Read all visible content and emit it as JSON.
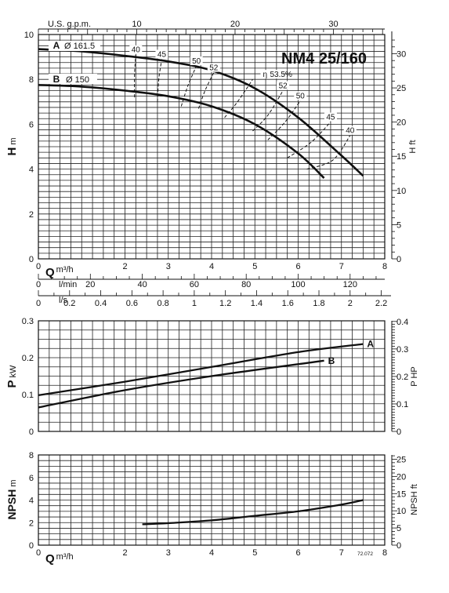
{
  "model": "NM4 25/160",
  "code": "72.072",
  "chart_data": [
    {
      "type": "line",
      "name": "head",
      "xlabel": "Q",
      "xunit": "m³/h",
      "ylabel": "H",
      "yunit": "m",
      "y2label": "H ft",
      "xlim": [
        0,
        8
      ],
      "ylim": [
        0,
        10
      ],
      "x_ticks": [
        0,
        1,
        2,
        3,
        4,
        5,
        6,
        7,
        8
      ],
      "y_ticks": [
        0,
        2,
        4,
        6,
        8,
        10
      ],
      "y2_ticks": [
        0,
        5,
        10,
        15,
        20,
        25,
        30
      ],
      "top_axis": {
        "label": "U.S. g.p.m.",
        "ticks": [
          10,
          20,
          30
        ]
      },
      "grid": true,
      "series": [
        {
          "name": "A",
          "label": "Ø 161.5",
          "x": [
            0,
            1,
            2,
            3,
            4,
            5,
            6,
            7,
            7.5
          ],
          "y": [
            9.35,
            9.25,
            9.05,
            8.8,
            8.4,
            7.6,
            6.3,
            4.6,
            3.7
          ]
        },
        {
          "name": "B",
          "label": "Ø 150",
          "x": [
            0,
            1,
            2,
            3,
            4,
            5,
            6,
            6.6
          ],
          "y": [
            7.75,
            7.68,
            7.5,
            7.25,
            6.8,
            6.0,
            4.7,
            3.6
          ]
        }
      ],
      "efficiency": {
        "prefix": "η",
        "lines": [
          {
            "label": "40",
            "x": [
              2.22,
              2.22,
              2.25
            ],
            "y": [
              7.2,
              8.2,
              9.1
            ]
          },
          {
            "label": "45",
            "x": [
              2.75,
              2.78,
              2.85
            ],
            "y": [
              7.0,
              8.0,
              8.9
            ]
          },
          {
            "label": "50",
            "x": [
              3.3,
              3.45,
              3.65
            ],
            "y": [
              6.8,
              7.7,
              8.6
            ]
          },
          {
            "label": "52",
            "x": [
              3.7,
              3.85,
              4.05
            ],
            "y": [
              6.7,
              7.5,
              8.3
            ]
          },
          {
            "label": "53.5%",
            "x": [
              4.3,
              4.6,
              4.95
            ],
            "y": [
              6.3,
              7.0,
              8.0
            ]
          },
          {
            "label": "52",
            "x": [
              4.95,
              5.3,
              5.65
            ],
            "y": [
              5.7,
              6.4,
              7.5
            ]
          },
          {
            "label": "50",
            "x": [
              5.3,
              5.7,
              6.05
            ],
            "y": [
              5.3,
              6.1,
              7.05
            ]
          },
          {
            "label": "45",
            "x": [
              5.75,
              6.3,
              6.75
            ],
            "y": [
              4.5,
              5.2,
              6.1
            ]
          },
          {
            "label": "40",
            "x": [
              6.2,
              6.8,
              7.2
            ],
            "y": [
              4.0,
              4.4,
              5.5
            ]
          }
        ]
      }
    },
    {
      "type": "axes",
      "name": "flow-scales",
      "scales": [
        {
          "unit": "l/min",
          "ticks": [
            20,
            40,
            60,
            80,
            100,
            120
          ]
        },
        {
          "unit": "l/s",
          "ticks": [
            0,
            0.2,
            0.4,
            0.6,
            0.8,
            1,
            1.2,
            1.4,
            1.6,
            1.8,
            2,
            2.2
          ]
        }
      ]
    },
    {
      "type": "line",
      "name": "power",
      "ylabel": "P",
      "yunit": "kW",
      "y2label": "P HP",
      "xlim": [
        0,
        8
      ],
      "ylim": [
        0,
        0.3
      ],
      "y_ticks": [
        0,
        0.1,
        0.2,
        0.3
      ],
      "y_tick_labels": [
        "0",
        "0.1",
        "0.2",
        "0.3"
      ],
      "y2_ticks": [
        0,
        0.1,
        0.2,
        0.3,
        0.4
      ],
      "y2_tick_labels": [
        "0",
        "0.1",
        "0.2",
        "0.3",
        "0.4"
      ],
      "grid": true,
      "series": [
        {
          "name": "A",
          "x": [
            0,
            2,
            4,
            6,
            7.5
          ],
          "y": [
            0.098,
            0.135,
            0.175,
            0.215,
            0.237
          ]
        },
        {
          "name": "B",
          "x": [
            0,
            2,
            4,
            6.6
          ],
          "y": [
            0.065,
            0.112,
            0.15,
            0.192
          ]
        }
      ]
    },
    {
      "type": "line",
      "name": "npsh",
      "xlabel": "Q",
      "xunit": "m³/h",
      "ylabel": "NPSH",
      "yunit": "m",
      "y2label": "NPSH ft",
      "xlim": [
        0,
        8
      ],
      "ylim": [
        0,
        8
      ],
      "x_ticks": [
        0,
        1,
        2,
        3,
        4,
        5,
        6,
        7,
        8
      ],
      "y_ticks": [
        0,
        2,
        4,
        6,
        8
      ],
      "y2_ticks": [
        0,
        5,
        10,
        15,
        20,
        25
      ],
      "grid": true,
      "series": [
        {
          "name": "NPSH",
          "x": [
            2.4,
            3,
            4,
            5,
            6,
            7,
            7.5
          ],
          "y": [
            1.85,
            1.95,
            2.2,
            2.6,
            3.0,
            3.6,
            4.0
          ]
        }
      ]
    }
  ]
}
